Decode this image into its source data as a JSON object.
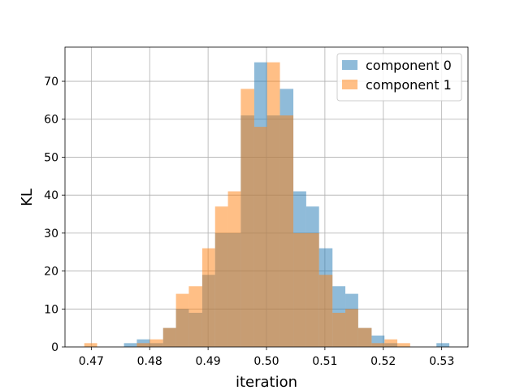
{
  "chart_data": {
    "type": "histogram",
    "xlabel": "iteration",
    "ylabel": "KL",
    "xlim": [
      0.4655,
      0.5345
    ],
    "ylim": [
      0,
      79
    ],
    "grid": true,
    "legend_position": "top-right",
    "x_ticks": [
      0.47,
      0.48,
      0.49,
      0.5,
      0.51,
      0.52,
      0.53
    ],
    "x_tick_labels": [
      "0.47",
      "0.48",
      "0.49",
      "0.50",
      "0.51",
      "0.52",
      "0.53"
    ],
    "y_ticks": [
      0,
      10,
      20,
      30,
      40,
      50,
      60,
      70
    ],
    "y_tick_labels": [
      "0",
      "10",
      "20",
      "30",
      "40",
      "50",
      "60",
      "70"
    ],
    "series": [
      {
        "name": "component 0",
        "color": "#1f77b4",
        "alpha": 0.5,
        "bins": [
          [
            0.4756,
            0.4778,
            1
          ],
          [
            0.4778,
            0.48,
            2
          ],
          [
            0.48,
            0.4823,
            1
          ],
          [
            0.4823,
            0.4845,
            5
          ],
          [
            0.4845,
            0.4867,
            10
          ],
          [
            0.4867,
            0.489,
            9
          ],
          [
            0.489,
            0.4912,
            19
          ],
          [
            0.4912,
            0.4934,
            30
          ],
          [
            0.4934,
            0.4956,
            30
          ],
          [
            0.4956,
            0.4979,
            61
          ],
          [
            0.4979,
            0.5001,
            75
          ],
          [
            0.5001,
            0.5023,
            61
          ],
          [
            0.5023,
            0.5046,
            68
          ],
          [
            0.5046,
            0.5068,
            41
          ],
          [
            0.5068,
            0.509,
            37
          ],
          [
            0.509,
            0.5113,
            26
          ],
          [
            0.5113,
            0.5135,
            16
          ],
          [
            0.5135,
            0.5157,
            14
          ],
          [
            0.5157,
            0.518,
            5
          ],
          [
            0.518,
            0.5202,
            3
          ],
          [
            0.5202,
            0.5224,
            1
          ],
          [
            0.5291,
            0.5313,
            1
          ]
        ]
      },
      {
        "name": "component 1",
        "color": "#ff7f0e",
        "alpha": 0.5,
        "bins": [
          [
            0.4688,
            0.471,
            1
          ],
          [
            0.4778,
            0.48,
            1
          ],
          [
            0.48,
            0.4823,
            2
          ],
          [
            0.4823,
            0.4845,
            5
          ],
          [
            0.4845,
            0.4867,
            14
          ],
          [
            0.4867,
            0.489,
            16
          ],
          [
            0.489,
            0.4912,
            26
          ],
          [
            0.4912,
            0.4934,
            37
          ],
          [
            0.4934,
            0.4956,
            41
          ],
          [
            0.4956,
            0.4979,
            68
          ],
          [
            0.4979,
            0.5001,
            58
          ],
          [
            0.5001,
            0.5023,
            75
          ],
          [
            0.5023,
            0.5046,
            61
          ],
          [
            0.5046,
            0.5068,
            30
          ],
          [
            0.5068,
            0.509,
            30
          ],
          [
            0.509,
            0.5113,
            19
          ],
          [
            0.5113,
            0.5135,
            9
          ],
          [
            0.5135,
            0.5157,
            10
          ],
          [
            0.5157,
            0.518,
            5
          ],
          [
            0.518,
            0.5202,
            1
          ],
          [
            0.5202,
            0.5224,
            2
          ],
          [
            0.5224,
            0.5246,
            1
          ]
        ]
      }
    ]
  }
}
